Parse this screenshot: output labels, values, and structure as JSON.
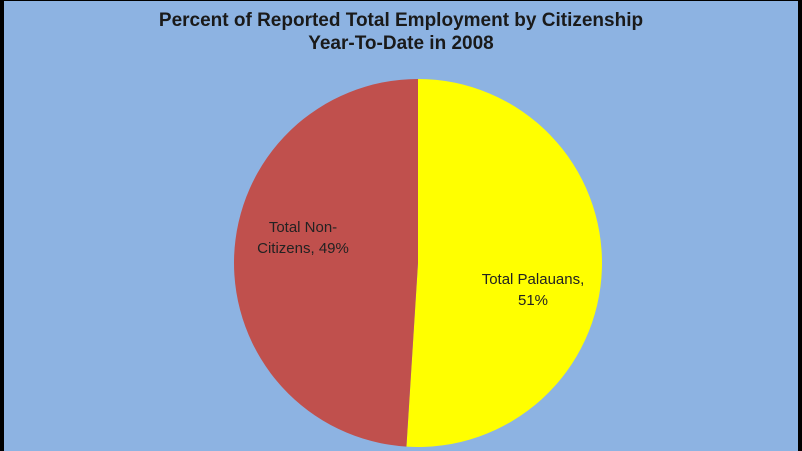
{
  "chart_data": {
    "type": "pie",
    "title": "Percent of Reported Total Employment by Citizenship",
    "subtitle": "Year-To-Date in 2008",
    "legend": "none",
    "slices": [
      {
        "name": "Total Palauans",
        "value": 51,
        "label_line1": "Total Palauans,",
        "label_line2": "51%",
        "color": "#ffff00"
      },
      {
        "name": "Total Non-Citizens",
        "value": 49,
        "label_line1": "Total Non-",
        "label_line2": "Citizens, 49%",
        "color": "#c0504d"
      }
    ]
  },
  "colors": {
    "background": "#8db3e2",
    "border": "#000000"
  }
}
